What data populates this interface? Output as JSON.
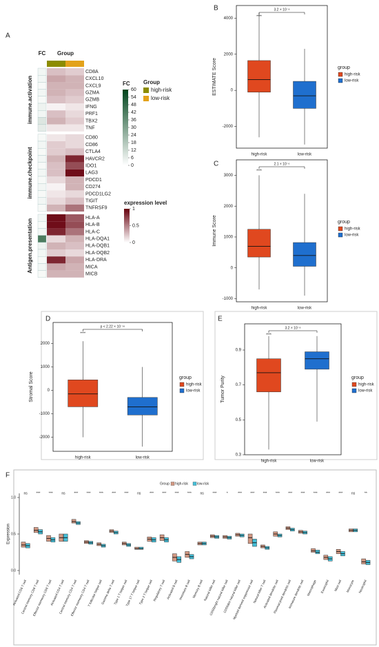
{
  "chart_data": [
    {
      "type": "heatmap",
      "panel_label": "A",
      "fc_header": "FC",
      "group_header": "Group",
      "groups": [
        {
          "name": "high-risk",
          "color": "#8c8c00"
        },
        {
          "name": "low-risk",
          "color": "#e3a21a"
        }
      ],
      "group_legend_title": "Group",
      "fc_legend_title": "FC",
      "fc_lim": [
        0,
        60
      ],
      "fc_ticks": [
        60,
        54,
        48,
        42,
        36,
        30,
        24,
        18,
        12,
        6,
        0
      ],
      "fc_colors": [
        "#ffffff",
        "#00441b"
      ],
      "expression_legend_title": "expression level",
      "expression_lim": [
        0,
        1
      ],
      "expression_ticks": [
        1,
        0.5,
        0
      ],
      "expression_colors": [
        "#ffffff",
        "#67000d"
      ],
      "row_groups": [
        {
          "label": "immune.activation",
          "rows": [
            "CD8A",
            "CXCL10",
            "CXCL9",
            "GZMA",
            "GZMB",
            "IFNG",
            "PRF1",
            "TBX2",
            "TNF"
          ],
          "fc": [
            3,
            3,
            2,
            3,
            2,
            4,
            3,
            8,
            6
          ],
          "values": [
            [
              0.25,
              0.2
            ],
            [
              0.35,
              0.3
            ],
            [
              0.3,
              0.3
            ],
            [
              0.3,
              0.25
            ],
            [
              0.25,
              0.2
            ],
            [
              0.05,
              0.1
            ],
            [
              0.25,
              0.15
            ],
            [
              0.3,
              0.2
            ],
            [
              0.1,
              0.1
            ]
          ]
        },
        {
          "label": "immune.checkpoint",
          "rows": [
            "CD80",
            "CD86",
            "CTLA4",
            "HAVCR2",
            "IDO1",
            "LAG3",
            "PDCD1",
            "CD274",
            "PDCD1LG2",
            "TIGIT",
            "TNFRSF9"
          ],
          "fc": [
            2,
            3,
            2,
            3,
            2,
            3,
            2,
            3,
            2,
            3,
            2
          ],
          "values": [
            [
              0.1,
              0.15
            ],
            [
              0.2,
              0.15
            ],
            [
              0.2,
              0.25
            ],
            [
              0.3,
              0.85
            ],
            [
              0.25,
              0.7
            ],
            [
              0.25,
              0.95
            ],
            [
              0.15,
              0.3
            ],
            [
              0.05,
              0.3
            ],
            [
              0.1,
              0.15
            ],
            [
              0.15,
              0.25
            ],
            [
              0.3,
              0.55
            ]
          ]
        },
        {
          "label": "Antigen.presentation",
          "rows": [
            "HLA-A",
            "HLA-B",
            "HLA-C",
            "HLA-DQA1",
            "HLA-DQB1",
            "HLA-DQB2",
            "HLA-DRA",
            "MICA",
            "MICB"
          ],
          "fc": [
            3,
            2,
            3,
            42,
            4,
            3,
            2,
            3,
            2
          ],
          "values": [
            [
              0.95,
              0.65
            ],
            [
              0.95,
              0.7
            ],
            [
              0.85,
              0.55
            ],
            [
              0.15,
              0.3
            ],
            [
              0.3,
              0.25
            ],
            [
              0.2,
              0.15
            ],
            [
              0.85,
              0.35
            ],
            [
              0.35,
              0.3
            ],
            [
              0.3,
              0.3
            ]
          ]
        }
      ]
    },
    {
      "type": "box",
      "panel_label": "B",
      "y_label": "ESTIMATE Score",
      "categories": [
        "high-risk",
        "low-risk"
      ],
      "colors": [
        "#e0481f",
        "#1f6fce"
      ],
      "legend_title": "group",
      "annotation": "3.2 × 10⁻⁸",
      "signif": "****",
      "median": [
        600,
        -300
      ],
      "q1": [
        -100,
        -1000
      ],
      "q3": [
        1650,
        500
      ],
      "whisker_low": [
        -2600,
        -3000
      ],
      "whisker_high": [
        4300,
        2300
      ],
      "ylim": [
        -3200,
        4700
      ],
      "yticks": [
        -2000,
        0,
        2000,
        4000
      ]
    },
    {
      "type": "box",
      "panel_label": "C",
      "y_label": "Immune Score",
      "categories": [
        "high-risk",
        "low-risk"
      ],
      "colors": [
        "#e0481f",
        "#1f6fce"
      ],
      "legend_title": "group",
      "annotation": "2.1 × 10⁻⁶",
      "signif": "****",
      "median": [
        700,
        400
      ],
      "q1": [
        350,
        50
      ],
      "q3": [
        1250,
        820
      ],
      "whisker_low": [
        -700,
        -900
      ],
      "whisker_high": [
        3000,
        2400
      ],
      "ylim": [
        -1100,
        3500
      ],
      "yticks": [
        -1000,
        0,
        1000,
        2000,
        3000
      ]
    },
    {
      "type": "box",
      "panel_label": "D",
      "y_label": "Stromal Score",
      "categories": [
        "high-risk",
        "low-risk"
      ],
      "colors": [
        "#e0481f",
        "#1f6fce"
      ],
      "legend_title": "group",
      "annotation": "p < 2.22 × 10⁻¹⁶",
      "signif": "****",
      "median": [
        -150,
        -700
      ],
      "q1": [
        -700,
        -1050
      ],
      "q3": [
        450,
        -300
      ],
      "whisker_low": [
        -2000,
        -2400
      ],
      "whisker_high": [
        2100,
        1000
      ],
      "ylim": [
        -2600,
        2900
      ],
      "yticks": [
        -2000,
        -1000,
        0,
        1000,
        2000
      ]
    },
    {
      "type": "box",
      "panel_label": "E",
      "y_label": "Tumor Purity",
      "categories": [
        "high-risk",
        "low-risk"
      ],
      "colors": [
        "#e0481f",
        "#1f6fce"
      ],
      "legend_title": "group",
      "annotation": "3.2 × 10⁻⁸",
      "signif": "****",
      "median": [
        0.77,
        0.85
      ],
      "q1": [
        0.66,
        0.79
      ],
      "q3": [
        0.85,
        0.89
      ],
      "whisker_low": [
        0.33,
        0.49
      ],
      "whisker_high": [
        0.98,
        0.98
      ],
      "ylim": [
        0.3,
        1.05
      ],
      "yticks": [
        0.3,
        0.5,
        0.7,
        0.9
      ]
    },
    {
      "type": "box",
      "panel_label": "F",
      "y_label": "Expression",
      "legend_title": "Group",
      "categories": [
        "Activated CD8 T cell",
        "Central memory CD8 T cell",
        "Effector memeory CD8 T cell",
        "Activated CD4 T cell",
        "Central memory CD4 T cell",
        "Effector memeory CD4 T cell",
        "T follicular helper cell",
        "Gamma delta T cell",
        "Type 1 T helper cell",
        "Type 17 T helper cell",
        "Type 2 T helper cell",
        "Regulatory T cell",
        "Activated B cell",
        "Immature  B cell",
        "Memory B cell",
        "Natural killer cell",
        "CD56bright natural killer cell",
        "CD56dim natural killer cell",
        "Myeloid derived suppressor cell",
        "Natural killer T cell",
        "Activated dendritic cell",
        "Plasmacytoid dendritic cell",
        "Immature dendritic cell",
        "Macrophage",
        "Eosinophil",
        "Mast cell",
        "Monocyte",
        "Neutrophil"
      ],
      "significance": [
        "ns",
        "***",
        "***",
        "ns",
        "***",
        "***",
        "***",
        "***",
        "***",
        "ns",
        "***",
        "***",
        "***",
        "***",
        "ns",
        "***",
        "*",
        "***",
        "***",
        "***",
        "***",
        "***",
        "***",
        "***",
        "***",
        "***",
        "ns",
        "**"
      ],
      "series": [
        {
          "name": "high-risk",
          "color": "#d29882",
          "median": [
            0.35,
            0.55,
            0.44,
            0.45,
            0.67,
            0.39,
            0.36,
            0.54,
            0.37,
            0.3,
            0.43,
            0.45,
            0.18,
            0.22,
            0.37,
            0.47,
            0.46,
            0.49,
            0.45,
            0.33,
            0.5,
            0.58,
            0.53,
            0.27,
            0.18,
            0.26,
            0.55,
            0.12
          ],
          "q1": [
            0.32,
            0.52,
            0.4,
            0.4,
            0.65,
            0.37,
            0.34,
            0.52,
            0.35,
            0.29,
            0.4,
            0.41,
            0.13,
            0.18,
            0.35,
            0.45,
            0.44,
            0.47,
            0.37,
            0.31,
            0.47,
            0.56,
            0.51,
            0.25,
            0.15,
            0.23,
            0.53,
            0.09
          ],
          "q3": [
            0.39,
            0.59,
            0.48,
            0.5,
            0.7,
            0.41,
            0.38,
            0.56,
            0.39,
            0.32,
            0.46,
            0.49,
            0.23,
            0.26,
            0.39,
            0.49,
            0.48,
            0.51,
            0.5,
            0.35,
            0.53,
            0.6,
            0.55,
            0.3,
            0.21,
            0.29,
            0.57,
            0.16
          ]
        },
        {
          "name": "low-risk",
          "color": "#45bfd8",
          "median": [
            0.34,
            0.53,
            0.42,
            0.45,
            0.65,
            0.38,
            0.34,
            0.52,
            0.35,
            0.3,
            0.42,
            0.42,
            0.15,
            0.19,
            0.37,
            0.46,
            0.45,
            0.48,
            0.38,
            0.31,
            0.48,
            0.56,
            0.52,
            0.25,
            0.16,
            0.23,
            0.55,
            0.11
          ],
          "q1": [
            0.31,
            0.5,
            0.39,
            0.4,
            0.63,
            0.36,
            0.32,
            0.5,
            0.33,
            0.29,
            0.39,
            0.39,
            0.11,
            0.16,
            0.35,
            0.44,
            0.43,
            0.46,
            0.33,
            0.29,
            0.46,
            0.54,
            0.5,
            0.23,
            0.13,
            0.2,
            0.53,
            0.08
          ],
          "q3": [
            0.37,
            0.56,
            0.45,
            0.5,
            0.67,
            0.4,
            0.36,
            0.54,
            0.37,
            0.32,
            0.45,
            0.45,
            0.19,
            0.22,
            0.39,
            0.48,
            0.47,
            0.5,
            0.43,
            0.33,
            0.5,
            0.58,
            0.54,
            0.28,
            0.19,
            0.26,
            0.57,
            0.14
          ]
        }
      ],
      "ylim": [
        0,
        1
      ],
      "yticks": [
        {
          "value": 0,
          "label": "0.0"
        },
        {
          "value": 0.5,
          "label": "0.5"
        },
        {
          "value": 1,
          "label": "1.0"
        }
      ]
    }
  ]
}
